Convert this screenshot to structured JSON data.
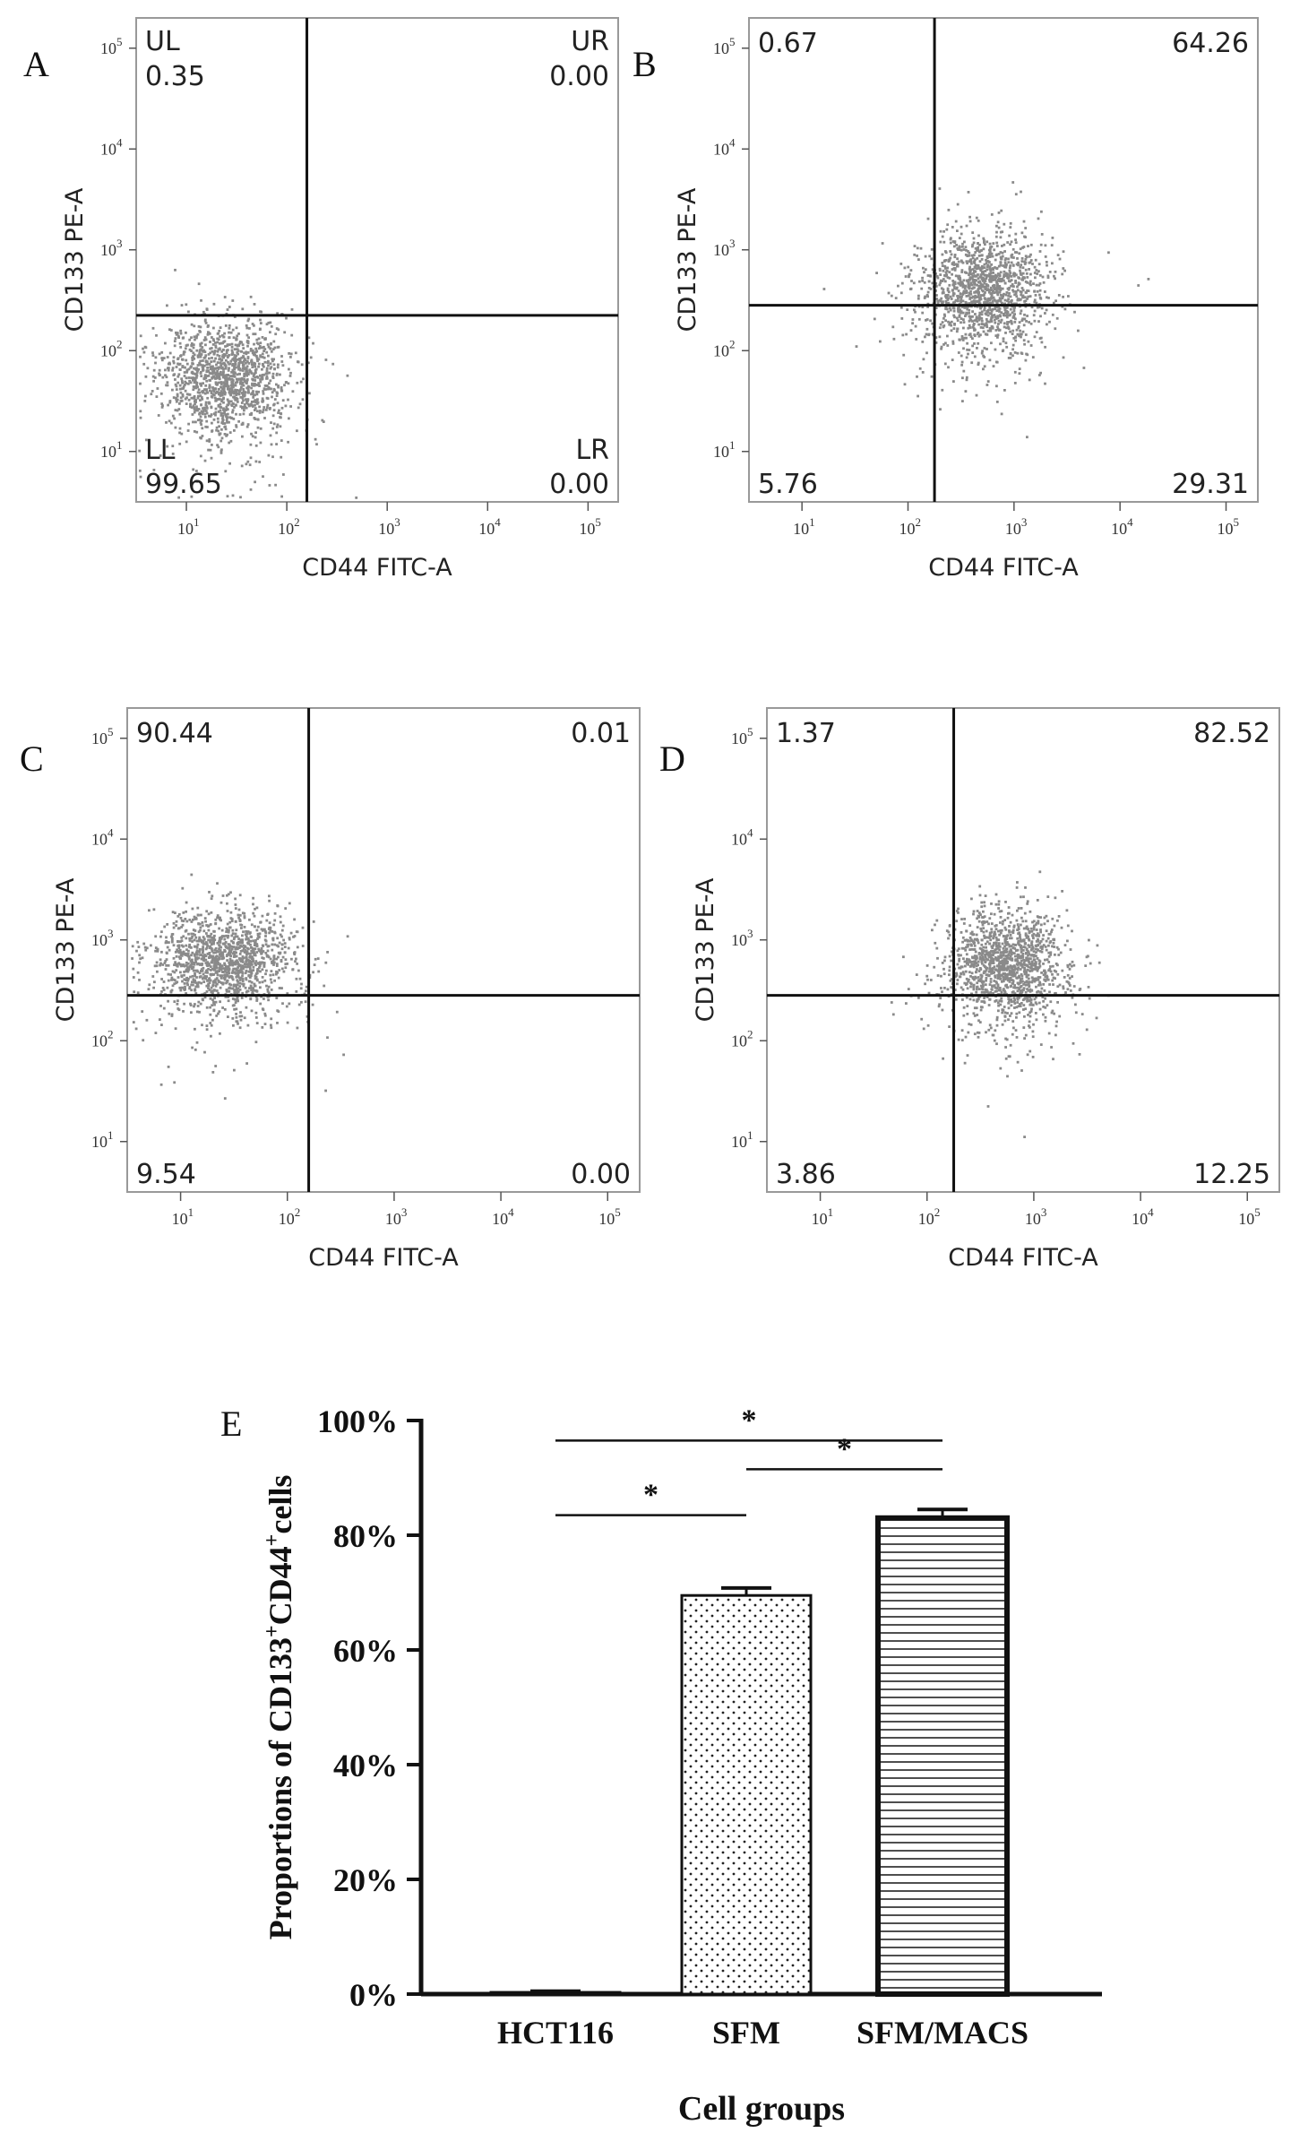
{
  "panel_letters": [
    "A",
    "B",
    "C",
    "D",
    "E"
  ],
  "chart_data": [
    {
      "type": "scatter",
      "panel": "A",
      "xlabel": "CD44 FITC-A",
      "ylabel": "CD133 PE-A",
      "scale": "log",
      "x_ticks": [
        "1",
        "2",
        "3",
        "4",
        "5"
      ],
      "y_ticks": [
        "1",
        "2",
        "3",
        "4",
        "5"
      ],
      "xlim_log10": [
        0.5,
        5.3
      ],
      "ylim_log10": [
        0.5,
        5.3
      ],
      "gate": {
        "x": 2.2,
        "y": 2.35
      },
      "quadrant_labels": {
        "UL": "UL",
        "UR": "UR",
        "LL": "LL",
        "LR": "LR"
      },
      "quadrants": {
        "UL": "0.35",
        "UR": "0.00",
        "LL": "99.65",
        "LR": "0.00"
      },
      "cluster": {
        "cx_log10": 1.4,
        "cy_log10": 1.75,
        "sx": 0.32,
        "sy": 0.28
      }
    },
    {
      "type": "scatter",
      "panel": "B",
      "xlabel": "CD44 FITC-A",
      "ylabel": "CD133 PE-A",
      "scale": "log",
      "x_ticks": [
        "1",
        "2",
        "3",
        "4",
        "5"
      ],
      "y_ticks": [
        "1",
        "2",
        "3",
        "4",
        "5"
      ],
      "xlim_log10": [
        0.5,
        5.3
      ],
      "ylim_log10": [
        0.5,
        5.3
      ],
      "gate": {
        "x": 2.25,
        "y": 2.45
      },
      "quadrants": {
        "UL": "0.67",
        "UR": "64.26",
        "LL": "5.76",
        "LR": "29.31"
      },
      "cluster": {
        "cx_log10": 2.7,
        "cy_log10": 2.6,
        "sx": 0.3,
        "sy": 0.3
      }
    },
    {
      "type": "scatter",
      "panel": "C",
      "xlabel": "CD44 FITC-A",
      "ylabel": "CD133 PE-A",
      "scale": "log",
      "x_ticks": [
        "1",
        "2",
        "3",
        "4",
        "5"
      ],
      "y_ticks": [
        "1",
        "2",
        "3",
        "4",
        "5"
      ],
      "xlim_log10": [
        0.5,
        5.3
      ],
      "ylim_log10": [
        0.5,
        5.3
      ],
      "gate": {
        "x": 2.2,
        "y": 2.45
      },
      "quadrants": {
        "UL": "90.44",
        "UR": "0.01",
        "LL": "9.54",
        "LR": "0.00"
      },
      "cluster": {
        "cx_log10": 1.4,
        "cy_log10": 2.8,
        "sx": 0.32,
        "sy": 0.25
      }
    },
    {
      "type": "scatter",
      "panel": "D",
      "xlabel": "CD44 FITC-A",
      "ylabel": "CD133 PE-A",
      "scale": "log",
      "x_ticks": [
        "1",
        "2",
        "3",
        "4",
        "5"
      ],
      "y_ticks": [
        "1",
        "2",
        "3",
        "4",
        "5"
      ],
      "xlim_log10": [
        0.5,
        5.3
      ],
      "ylim_log10": [
        0.5,
        5.3
      ],
      "gate": {
        "x": 2.25,
        "y": 2.45
      },
      "quadrants": {
        "UL": "1.37",
        "UR": "82.52",
        "LL": "3.86",
        "LR": "12.25"
      },
      "cluster": {
        "cx_log10": 2.75,
        "cy_log10": 2.75,
        "sx": 0.28,
        "sy": 0.28
      }
    },
    {
      "type": "bar",
      "panel": "E",
      "categories": [
        "HCT116",
        "SFM",
        "SFM/MACS"
      ],
      "values": [
        0.3,
        69.5,
        83.0
      ],
      "errors": [
        0.2,
        1.3,
        1.5
      ],
      "patterns": [
        "none",
        "dots",
        "hlines"
      ],
      "ylim": [
        0,
        100
      ],
      "yticks": [
        "0%",
        "20%",
        "40%",
        "60%",
        "80%",
        "100%"
      ],
      "ytick_values": [
        0,
        20,
        40,
        60,
        80,
        100
      ],
      "ylabel_parts": [
        "Proportions of CD133",
        "+",
        "CD44",
        "+",
        "cells"
      ],
      "xlabel": "Cell groups",
      "significance": [
        {
          "from": 0,
          "to": 1,
          "level": 83.5,
          "label": "*"
        },
        {
          "from": 1,
          "to": 2,
          "level": 91.5,
          "label": "*"
        },
        {
          "from": 0,
          "to": 2,
          "level": 96.5,
          "label": "*"
        }
      ]
    }
  ],
  "colors": {
    "dots": "#8a8a8a",
    "frame": "#999999",
    "line": "#111111"
  }
}
